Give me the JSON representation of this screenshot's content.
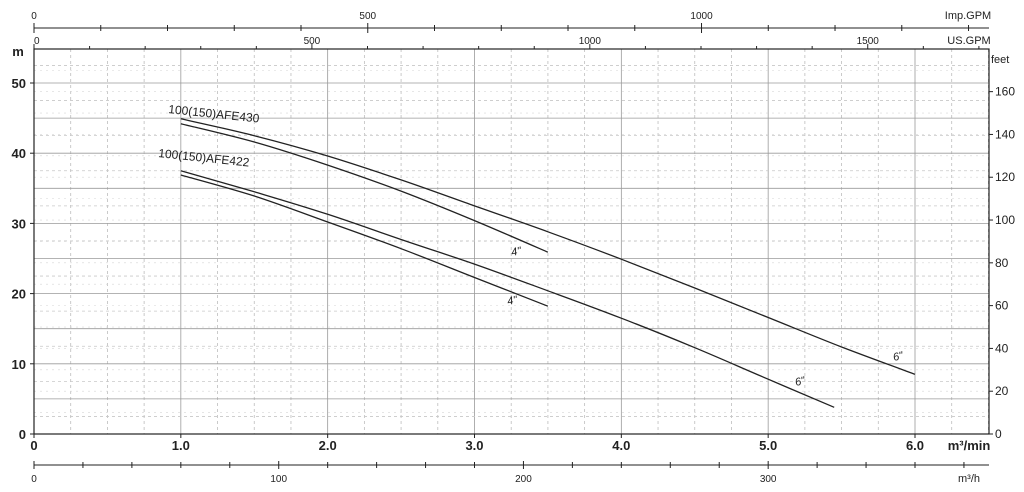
{
  "chart_data": {
    "type": "line",
    "title": "",
    "x_primary": {
      "unit": "m³/min",
      "range": [
        0,
        7.0
      ],
      "ticks": [
        "0",
        "1.0",
        "2.0",
        "3.0",
        "4.0",
        "5.0",
        "6.0"
      ],
      "tick_values": [
        0,
        1,
        2,
        3,
        4,
        5,
        6
      ]
    },
    "x_bottom": {
      "unit": "m³/h",
      "ticks": [
        "0",
        "100",
        "200",
        "300"
      ],
      "tick_values": [
        0,
        100,
        200,
        300
      ]
    },
    "x_top_imp": {
      "unit": "Imp.GPM",
      "ticks": [
        "0",
        "500",
        "1000"
      ],
      "tick_values": [
        0,
        500,
        1000
      ]
    },
    "x_top_us": {
      "unit": "US.GPM",
      "ticks": [
        "0",
        "500",
        "1000",
        "1500"
      ],
      "tick_values": [
        0,
        500,
        1000,
        1500
      ]
    },
    "y_left": {
      "unit": "m",
      "range": [
        0,
        55
      ],
      "ticks": [
        "0",
        "10",
        "20",
        "30",
        "40",
        "50"
      ],
      "tick_values": [
        0,
        10,
        20,
        30,
        40,
        50
      ]
    },
    "y_right": {
      "unit": "feet",
      "ticks": [
        "0",
        "20",
        "40",
        "60",
        "80",
        "100",
        "120",
        "140",
        "160"
      ],
      "tick_values": [
        0,
        20,
        40,
        60,
        80,
        100,
        120,
        140,
        160
      ]
    },
    "grid": true,
    "labels": {
      "model_430": "100(150)AFE430",
      "model_422": "100(150)AFE422",
      "size_4": "4\"",
      "size_6": "6\""
    },
    "series": [
      {
        "name": "100(150)AFE430 6\"",
        "x": [
          1.0,
          1.5,
          2.0,
          2.5,
          3.0,
          3.5,
          4.0,
          4.5,
          5.0,
          5.5,
          6.0
        ],
        "y": [
          44.9,
          42.5,
          39.6,
          36.2,
          32.5,
          28.8,
          24.9,
          20.8,
          16.6,
          12.4,
          8.5
        ]
      },
      {
        "name": "100(150)AFE430 4\"",
        "x": [
          1.0,
          1.5,
          2.0,
          2.5,
          3.0,
          3.5
        ],
        "y": [
          44.2,
          41.6,
          38.3,
          34.6,
          30.4,
          25.9
        ]
      },
      {
        "name": "100(150)AFE422 6\"",
        "x": [
          1.0,
          1.5,
          2.0,
          2.5,
          3.0,
          3.5,
          4.0,
          4.5,
          5.0,
          5.45
        ],
        "y": [
          37.5,
          34.5,
          31.3,
          27.7,
          24.2,
          20.4,
          16.5,
          12.3,
          7.8,
          3.8
        ]
      },
      {
        "name": "100(150)AFE422 4\"",
        "x": [
          1.0,
          1.5,
          2.0,
          2.5,
          3.0,
          3.5
        ],
        "y": [
          36.9,
          33.9,
          30.2,
          26.4,
          22.3,
          18.2
        ]
      }
    ]
  }
}
